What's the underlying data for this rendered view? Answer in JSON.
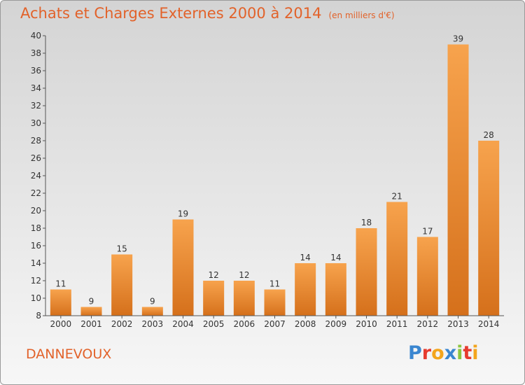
{
  "chart_data": {
    "type": "bar",
    "title": "Achats et Charges Externes 2000 à 2014",
    "subtitle": "(en milliers d'€)",
    "categories": [
      "2000",
      "2001",
      "2002",
      "2003",
      "2004",
      "2005",
      "2006",
      "2007",
      "2008",
      "2009",
      "2010",
      "2011",
      "2012",
      "2013",
      "2014"
    ],
    "values": [
      11,
      9,
      15,
      9,
      19,
      12,
      12,
      11,
      14,
      14,
      18,
      21,
      17,
      39,
      28
    ],
    "xlabel": "",
    "ylabel": "",
    "ylim": [
      8,
      40
    ],
    "yticks": [
      8,
      10,
      12,
      14,
      16,
      18,
      20,
      22,
      24,
      26,
      28,
      30,
      32,
      34,
      36,
      38,
      40
    ],
    "grid": false,
    "bar_color_top": "#f7a34d",
    "bar_color_bottom": "#d5701b",
    "legend": "none"
  },
  "commune": "DANNEVOUX",
  "logo": {
    "letters": [
      "P",
      "r",
      "o",
      "x",
      "i",
      "t",
      "i"
    ],
    "colors": [
      "#3a86d0",
      "#e63b2e",
      "#f3a51d",
      "#3a86d0",
      "#8cc63f",
      "#e63b2e",
      "#f3a51d"
    ]
  },
  "accent_color": "#e2622a"
}
